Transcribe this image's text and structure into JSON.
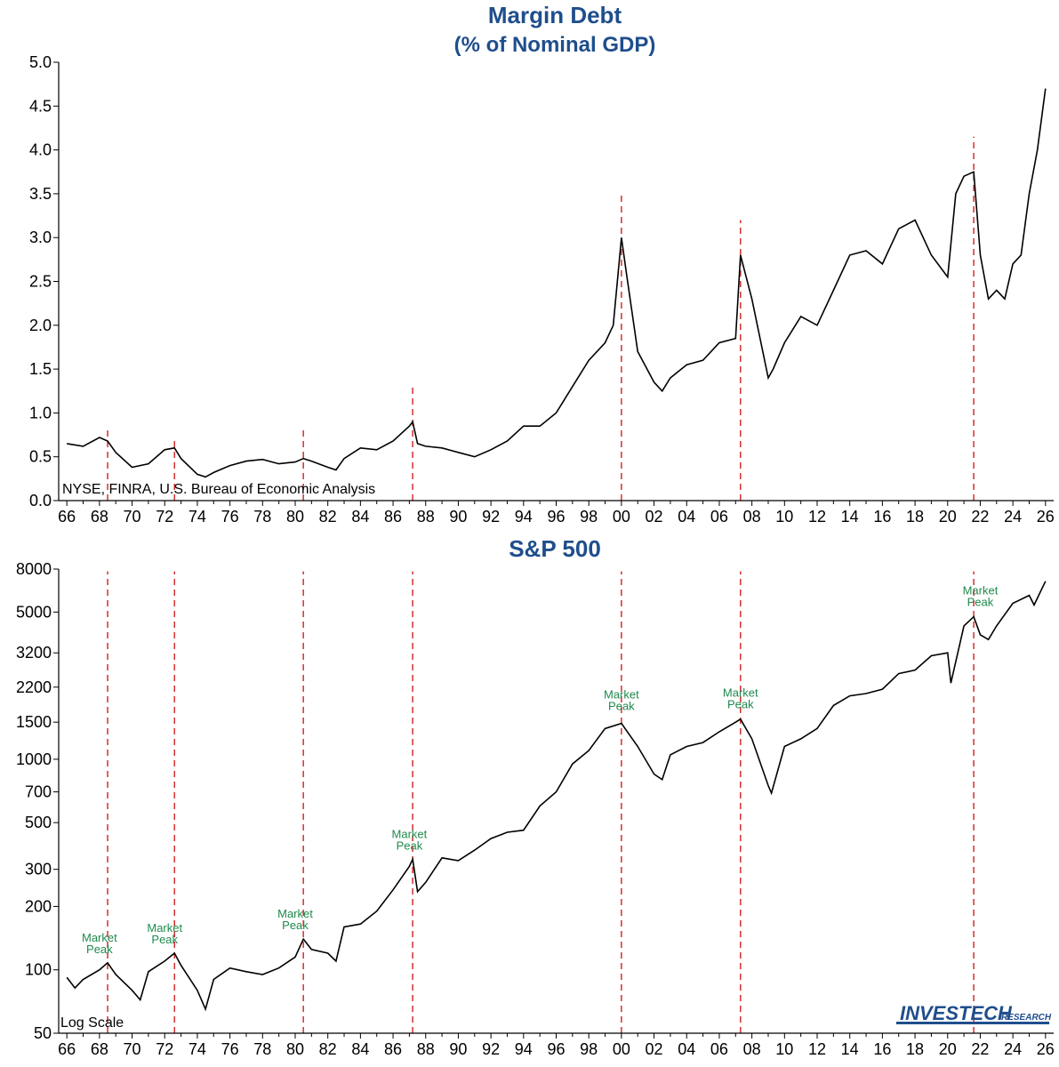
{
  "chart_data": [
    {
      "type": "line",
      "title": "Margin Debt",
      "subtitle": "(% of Nominal GDP)",
      "source": "NYSE, FINRA, U.S. Bureau of Economic Analysis",
      "xlim": [
        1965.5,
        2026.5
      ],
      "ylim": [
        0,
        5
      ],
      "yticks": [
        0.0,
        0.5,
        1.0,
        1.5,
        2.0,
        2.5,
        3.0,
        3.5,
        4.0,
        4.5,
        5.0
      ],
      "ytick_labels": [
        "0.0",
        "0.5",
        "1.0",
        "1.5",
        "2.0",
        "2.5",
        "3.0",
        "3.5",
        "4.0",
        "4.5",
        "5.0"
      ],
      "xtick_labels": [
        "66",
        "68",
        "70",
        "72",
        "74",
        "76",
        "78",
        "80",
        "82",
        "84",
        "86",
        "88",
        "90",
        "92",
        "94",
        "96",
        "98",
        "00",
        "02",
        "04",
        "06",
        "08",
        "10",
        "12",
        "14",
        "16",
        "18",
        "20",
        "22",
        "24",
        "26"
      ],
      "peak_lines": [
        {
          "x": 1968.5,
          "top": 0.85
        },
        {
          "x": 1972.6,
          "top": 0.7
        },
        {
          "x": 1980.5,
          "top": 0.82
        },
        {
          "x": 1987.2,
          "top": 1.3
        },
        {
          "x": 2000.0,
          "top": 3.5
        },
        {
          "x": 2007.3,
          "top": 3.2
        },
        {
          "x": 2021.6,
          "top": 4.15
        }
      ],
      "series": [
        {
          "x": [
            1966,
            1967,
            1968,
            1968.5,
            1969,
            1970,
            1971,
            1972,
            1972.6,
            1973,
            1974,
            1974.5,
            1975,
            1976,
            1977,
            1978,
            1979,
            1980,
            1980.5,
            1981,
            1982,
            1982.5,
            1983,
            1984,
            1985,
            1986,
            1987,
            1987.2,
            1987.5,
            1988,
            1989,
            1990,
            1991,
            1992,
            1993,
            1994,
            1995,
            1996,
            1997,
            1998,
            1999,
            1999.5,
            2000,
            2000.3,
            2001,
            2002,
            2002.5,
            2003,
            2004,
            2005,
            2006,
            2007,
            2007.3,
            2008,
            2009,
            2009.3,
            2010,
            2011,
            2012,
            2013,
            2014,
            2015,
            2016,
            2017,
            2018,
            2019,
            2020,
            2020.5,
            2021,
            2021.6,
            2022,
            2022.5,
            2023,
            2023.5,
            2024,
            2024.5,
            2025,
            2025.5,
            2026
          ],
          "y": [
            0.65,
            0.62,
            0.72,
            0.68,
            0.55,
            0.38,
            0.42,
            0.58,
            0.6,
            0.48,
            0.3,
            0.27,
            0.32,
            0.4,
            0.45,
            0.47,
            0.42,
            0.44,
            0.48,
            0.45,
            0.38,
            0.35,
            0.48,
            0.6,
            0.58,
            0.68,
            0.85,
            0.9,
            0.65,
            0.62,
            0.6,
            0.55,
            0.5,
            0.58,
            0.68,
            0.85,
            0.85,
            1.0,
            1.3,
            1.6,
            1.8,
            2.0,
            3.0,
            2.6,
            1.7,
            1.35,
            1.25,
            1.4,
            1.55,
            1.6,
            1.8,
            1.85,
            2.8,
            2.3,
            1.4,
            1.5,
            1.8,
            2.1,
            2.0,
            2.4,
            2.8,
            2.85,
            2.7,
            3.1,
            3.2,
            2.8,
            2.55,
            3.5,
            3.7,
            3.75,
            2.8,
            2.3,
            2.4,
            2.3,
            2.7,
            2.8,
            3.5,
            4.0,
            4.7
          ]
        }
      ]
    },
    {
      "type": "line",
      "title": "S&P 500",
      "note": "Log Scale",
      "scale": "log",
      "xlim": [
        1965.5,
        2026.5
      ],
      "ylim": [
        50,
        8000
      ],
      "yticks": [
        50,
        100,
        200,
        300,
        500,
        700,
        1000,
        1500,
        2200,
        3200,
        5000,
        8000
      ],
      "ytick_labels": [
        "50",
        "100",
        "200",
        "300",
        "500",
        "700",
        "1000",
        "1500",
        "2200",
        "3200",
        "5000",
        "8000"
      ],
      "xtick_labels": [
        "66",
        "68",
        "70",
        "72",
        "74",
        "76",
        "78",
        "80",
        "82",
        "84",
        "86",
        "88",
        "90",
        "92",
        "94",
        "96",
        "98",
        "00",
        "02",
        "04",
        "06",
        "08",
        "10",
        "12",
        "14",
        "16",
        "18",
        "20",
        "22",
        "24",
        "26"
      ],
      "annotations": [
        {
          "x": 1968.0,
          "y": 108,
          "text": [
            "Market",
            "Peak"
          ]
        },
        {
          "x": 1972.0,
          "y": 120,
          "text": [
            "Market",
            "Peak"
          ]
        },
        {
          "x": 1980.0,
          "y": 140,
          "text": [
            "Market",
            "Peak"
          ]
        },
        {
          "x": 1987.0,
          "y": 335,
          "text": [
            "Market",
            "Peak"
          ]
        },
        {
          "x": 2000.0,
          "y": 1540,
          "text": [
            "Market",
            "Peak"
          ]
        },
        {
          "x": 2007.3,
          "y": 1570,
          "text": [
            "Market",
            "Peak"
          ]
        },
        {
          "x": 2022.0,
          "y": 4800,
          "text": [
            "Market",
            "Peak"
          ]
        }
      ],
      "peak_lines": [
        {
          "x": 1968.5,
          "top": 7800
        },
        {
          "x": 1972.6,
          "top": 7800
        },
        {
          "x": 1980.5,
          "top": 7800
        },
        {
          "x": 1987.2,
          "top": 7800
        },
        {
          "x": 2000.0,
          "top": 7800
        },
        {
          "x": 2007.3,
          "top": 7800
        },
        {
          "x": 2021.6,
          "top": 7800
        }
      ],
      "series": [
        {
          "x": [
            1966,
            1966.5,
            1967,
            1968,
            1968.5,
            1969,
            1970,
            1970.5,
            1971,
            1972,
            1972.6,
            1973,
            1974,
            1974.5,
            1975,
            1976,
            1977,
            1978,
            1979,
            1980,
            1980.5,
            1981,
            1982,
            1982.5,
            1983,
            1984,
            1985,
            1986,
            1987,
            1987.2,
            1987.5,
            1988,
            1989,
            1990,
            1991,
            1992,
            1993,
            1994,
            1995,
            1996,
            1997,
            1998,
            1999,
            2000,
            2001,
            2002,
            2002.5,
            2003,
            2004,
            2005,
            2006,
            2007,
            2007.3,
            2008,
            2009,
            2009.2,
            2010,
            2011,
            2012,
            2013,
            2014,
            2015,
            2016,
            2017,
            2018,
            2019,
            2020,
            2020.2,
            2021,
            2021.6,
            2022,
            2022.5,
            2023,
            2024,
            2025,
            2025.3,
            2026
          ],
          "y": [
            92,
            82,
            90,
            100,
            108,
            95,
            80,
            72,
            98,
            110,
            120,
            105,
            80,
            65,
            90,
            102,
            98,
            95,
            102,
            115,
            140,
            125,
            120,
            110,
            160,
            165,
            190,
            240,
            310,
            335,
            235,
            260,
            340,
            330,
            370,
            420,
            450,
            460,
            600,
            700,
            950,
            1100,
            1400,
            1480,
            1150,
            850,
            800,
            1050,
            1150,
            1200,
            1350,
            1500,
            1550,
            1250,
            750,
            690,
            1150,
            1250,
            1400,
            1800,
            2000,
            2050,
            2150,
            2550,
            2650,
            3100,
            3200,
            2300,
            4300,
            4750,
            3900,
            3700,
            4300,
            5500,
            6000,
            5400,
            7000
          ]
        }
      ]
    }
  ],
  "logo": {
    "text_main": "INVESTECH",
    "text_sub": "RESEARCH"
  }
}
